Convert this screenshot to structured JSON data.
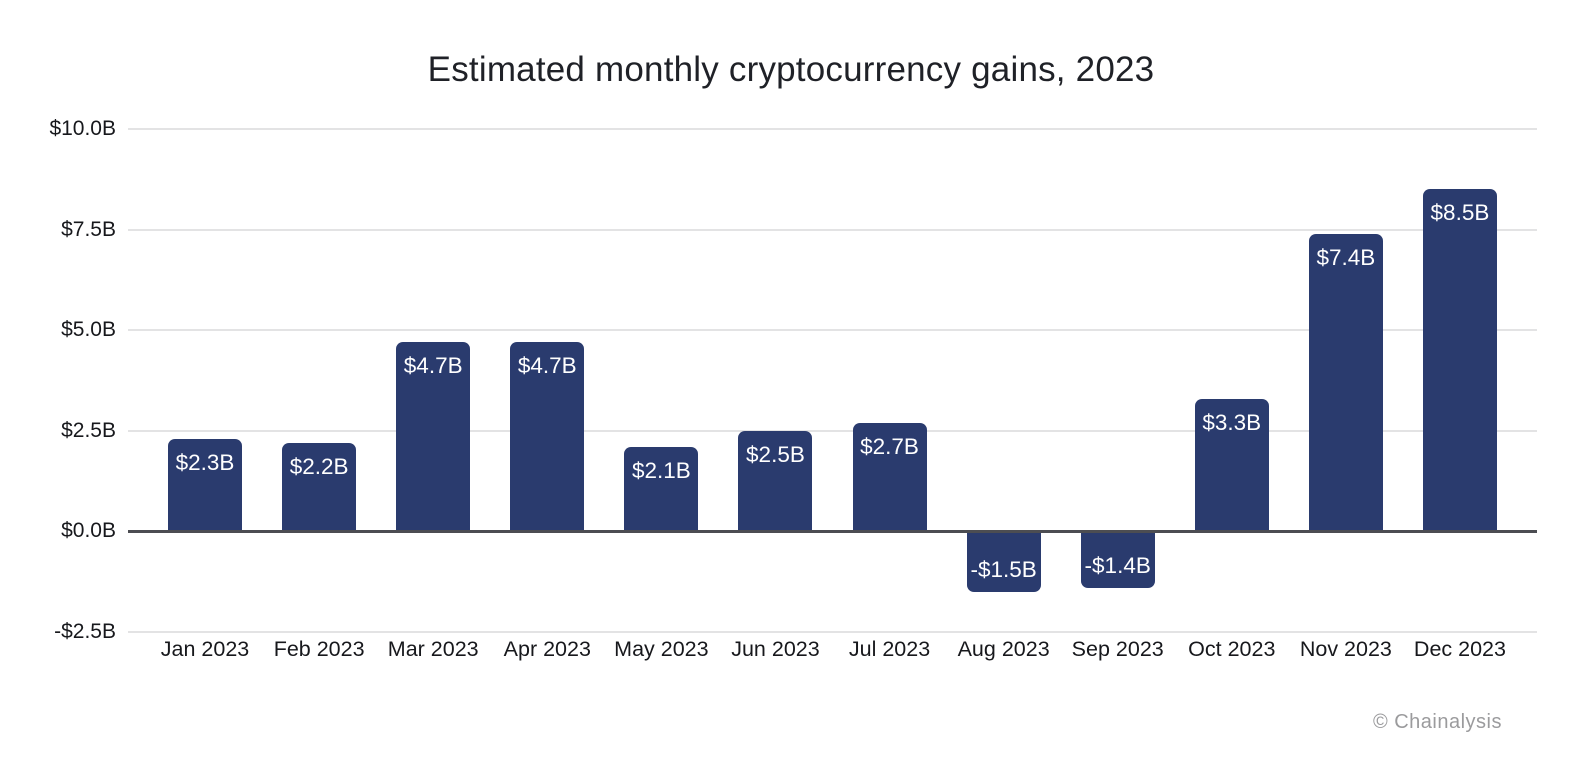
{
  "title": "Estimated monthly cryptocurrency gains, 2023",
  "copyright": "© Chainalysis",
  "chart_data": {
    "type": "bar",
    "title": "Estimated monthly cryptocurrency gains, 2023",
    "categories": [
      "Jan 2023",
      "Feb 2023",
      "Mar 2023",
      "Apr 2023",
      "May 2023",
      "Jun 2023",
      "Jul 2023",
      "Aug 2023",
      "Sep 2023",
      "Oct 2023",
      "Nov 2023",
      "Dec 2023"
    ],
    "values": [
      2.3,
      2.2,
      4.7,
      4.7,
      2.1,
      2.5,
      2.7,
      -1.5,
      -1.4,
      3.3,
      7.4,
      8.5
    ],
    "value_labels": [
      "$2.3B",
      "$2.2B",
      "$4.7B",
      "$4.7B",
      "$2.1B",
      "$2.5B",
      "$2.7B",
      "-$1.5B",
      "-$1.4B",
      "$3.3B",
      "$7.4B",
      "$8.5B"
    ],
    "xlabel": "",
    "ylabel": "",
    "ylim": [
      -2.5,
      10
    ],
    "yticks": [
      10,
      7.5,
      5,
      2.5,
      0,
      -2.5
    ],
    "ytick_labels": [
      "$10.0B",
      "$7.5B",
      "$5.0B",
      "$2.5B",
      "$0.0B",
      "-$2.5B"
    ],
    "grid": true,
    "legend": false,
    "bar_color": "#2a3b6e",
    "bar_label_color": "#ffffff",
    "gridline_color": "#e3e3e4",
    "zero_line_color": "#4c4d52"
  }
}
